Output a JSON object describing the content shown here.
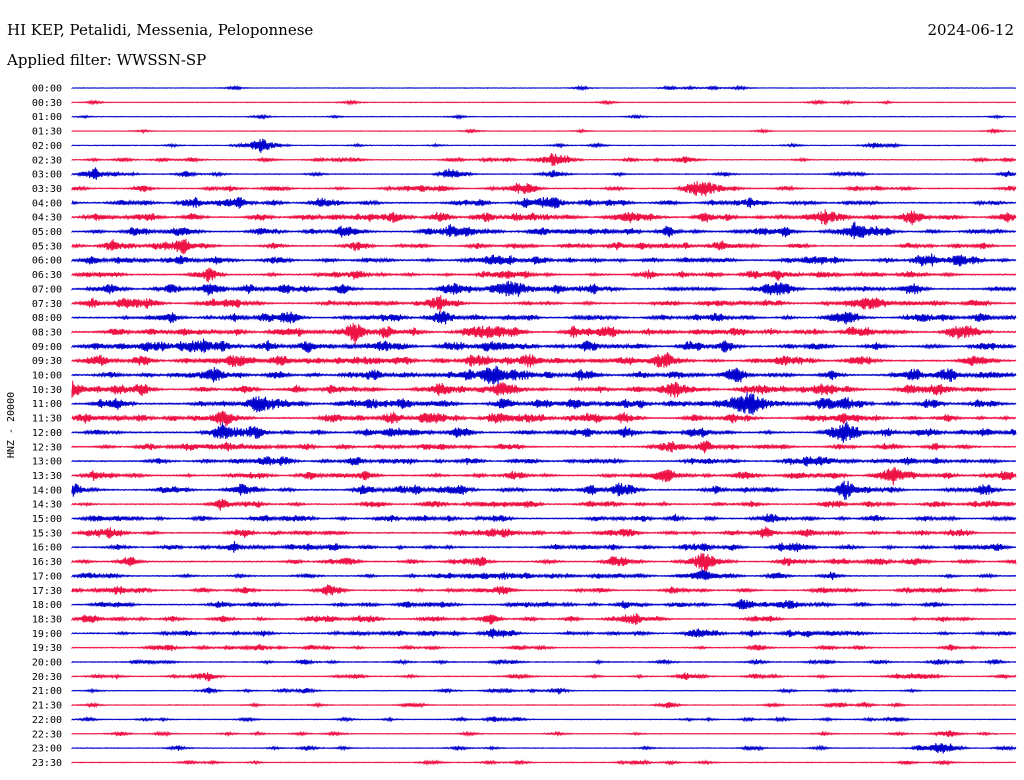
{
  "header": {
    "station": "HI KEP, Petalidi, Messenia, Peloponnese",
    "filter": "Applied filter: WWSSN-SP",
    "date": "2024-06-12"
  },
  "colors": {
    "trace_a": "#0000cc",
    "trace_b": "#ee1144",
    "axis": "#000000"
  },
  "chart_data": {
    "type": "line",
    "title": "HI KEP, Petalidi, Messenia, Peloponnese",
    "xlabel": "",
    "ylabel": "HNZ - 20000",
    "grid": false,
    "legend": "none",
    "trace_interval_minutes": 30,
    "rows": [
      {
        "label": "00:00",
        "activity": 0.05,
        "events": [
          [
            0.54,
            0.3
          ]
        ]
      },
      {
        "label": "00:30",
        "activity": 0.05,
        "events": [
          [
            0.79,
            0.3
          ]
        ]
      },
      {
        "label": "01:00",
        "activity": 0.05,
        "events": [
          [
            0.2,
            0.3
          ]
        ]
      },
      {
        "label": "01:30",
        "activity": 0.05,
        "events": []
      },
      {
        "label": "02:00",
        "activity": 0.08,
        "events": [
          [
            0.2,
            1.2
          ],
          [
            0.85,
            0.5
          ]
        ]
      },
      {
        "label": "02:30",
        "activity": 0.2,
        "events": [
          [
            0.51,
            1.1
          ],
          [
            0.65,
            0.6
          ]
        ]
      },
      {
        "label": "03:00",
        "activity": 0.25,
        "events": [
          [
            0.51,
            0.6
          ]
        ]
      },
      {
        "label": "03:30",
        "activity": 0.4,
        "events": [
          [
            0.47,
            0.7
          ],
          [
            0.67,
            0.9
          ]
        ]
      },
      {
        "label": "04:00",
        "activity": 0.5,
        "events": [
          [
            0.13,
            0.8
          ],
          [
            0.5,
            0.6
          ]
        ]
      },
      {
        "label": "04:30",
        "activity": 0.6,
        "events": [
          [
            0.34,
            0.8
          ],
          [
            0.59,
            0.8
          ],
          [
            0.89,
            0.8
          ]
        ]
      },
      {
        "label": "05:00",
        "activity": 0.55,
        "events": [
          [
            0.4,
            0.9
          ],
          [
            0.83,
            1.5
          ]
        ]
      },
      {
        "label": "05:30",
        "activity": 0.5,
        "events": [
          [
            0.3,
            0.6
          ]
        ]
      },
      {
        "label": "06:00",
        "activity": 0.6,
        "events": [
          [
            0.94,
            0.8
          ]
        ]
      },
      {
        "label": "06:30",
        "activity": 0.55,
        "events": [
          [
            0.46,
            0.8
          ]
        ]
      },
      {
        "label": "07:00",
        "activity": 0.65,
        "events": [
          [
            0.04,
            0.7
          ],
          [
            0.47,
            1.2
          ],
          [
            0.75,
            0.9
          ]
        ]
      },
      {
        "label": "07:30",
        "activity": 0.6,
        "events": [
          [
            0.39,
            0.8
          ]
        ]
      },
      {
        "label": "08:00",
        "activity": 0.6,
        "events": [
          [
            0.39,
            0.8
          ]
        ]
      },
      {
        "label": "08:30",
        "activity": 0.7,
        "events": [
          [
            0.3,
            0.9
          ],
          [
            0.57,
            0.9
          ],
          [
            0.95,
            0.8
          ]
        ]
      },
      {
        "label": "09:00",
        "activity": 0.7,
        "events": [
          [
            0.08,
            0.8
          ],
          [
            0.14,
            0.8
          ],
          [
            0.25,
            0.9
          ]
        ]
      },
      {
        "label": "09:30",
        "activity": 0.7,
        "events": [
          [
            0.03,
            0.8
          ],
          [
            0.63,
            1.1
          ],
          [
            0.75,
            0.6
          ]
        ]
      },
      {
        "label": "10:00",
        "activity": 0.7,
        "events": [
          [
            0.15,
            1.0
          ],
          [
            0.45,
            0.9
          ],
          [
            0.93,
            0.8
          ]
        ]
      },
      {
        "label": "10:30",
        "activity": 0.7,
        "events": [
          [
            0.0,
            1.1
          ],
          [
            0.39,
            0.9
          ],
          [
            0.64,
            0.8
          ],
          [
            0.73,
            0.9
          ]
        ]
      },
      {
        "label": "11:00",
        "activity": 0.7,
        "events": [
          [
            0.2,
            1.2
          ],
          [
            0.72,
            1.3
          ],
          [
            0.82,
            1.0
          ]
        ]
      },
      {
        "label": "11:30",
        "activity": 0.65,
        "events": [
          [
            0.16,
            1.2
          ],
          [
            0.7,
            0.7
          ]
        ]
      },
      {
        "label": "12:00",
        "activity": 0.6,
        "events": [
          [
            0.16,
            1.0
          ],
          [
            0.82,
            1.1
          ]
        ]
      },
      {
        "label": "12:30",
        "activity": 0.5,
        "events": [
          [
            0.67,
            0.8
          ]
        ]
      },
      {
        "label": "13:00",
        "activity": 0.5,
        "events": [
          [
            0.78,
            0.8
          ]
        ]
      },
      {
        "label": "13:30",
        "activity": 0.55,
        "events": [
          [
            0.63,
            1.1
          ],
          [
            0.87,
            1.0
          ]
        ]
      },
      {
        "label": "14:00",
        "activity": 0.55,
        "events": [
          [
            0.18,
            0.7
          ],
          [
            0.82,
            1.1
          ]
        ]
      },
      {
        "label": "14:30",
        "activity": 0.45,
        "events": []
      },
      {
        "label": "15:00",
        "activity": 0.45,
        "events": [
          [
            0.74,
            0.9
          ]
        ]
      },
      {
        "label": "15:30",
        "activity": 0.45,
        "events": [
          [
            0.46,
            0.7
          ],
          [
            0.78,
            0.6
          ]
        ]
      },
      {
        "label": "16:00",
        "activity": 0.5,
        "events": [
          [
            0.25,
            0.5
          ]
        ]
      },
      {
        "label": "16:30",
        "activity": 0.45,
        "events": [
          [
            0.67,
            1.3
          ]
        ]
      },
      {
        "label": "17:00",
        "activity": 0.4,
        "events": [
          [
            0.67,
            0.9
          ]
        ]
      },
      {
        "label": "17:30",
        "activity": 0.45,
        "events": [
          [
            0.27,
            0.6
          ]
        ]
      },
      {
        "label": "18:00",
        "activity": 0.45,
        "events": [
          [
            0.76,
            0.7
          ]
        ]
      },
      {
        "label": "18:30",
        "activity": 0.4,
        "events": [
          [
            0.16,
            0.5
          ]
        ]
      },
      {
        "label": "19:00",
        "activity": 0.45,
        "events": [
          [
            0.72,
            0.5
          ]
        ]
      },
      {
        "label": "19:30",
        "activity": 0.3,
        "events": []
      },
      {
        "label": "20:00",
        "activity": 0.25,
        "events": []
      },
      {
        "label": "20:30",
        "activity": 0.3,
        "events": []
      },
      {
        "label": "21:00",
        "activity": 0.2,
        "events": []
      },
      {
        "label": "21:30",
        "activity": 0.15,
        "events": []
      },
      {
        "label": "22:00",
        "activity": 0.2,
        "events": []
      },
      {
        "label": "22:30",
        "activity": 0.15,
        "events": [
          [
            0.93,
            0.5
          ]
        ]
      },
      {
        "label": "23:00",
        "activity": 0.15,
        "events": [
          [
            0.25,
            0.4
          ],
          [
            0.92,
            1.1
          ]
        ]
      },
      {
        "label": "23:30",
        "activity": 0.15,
        "events": []
      }
    ]
  }
}
